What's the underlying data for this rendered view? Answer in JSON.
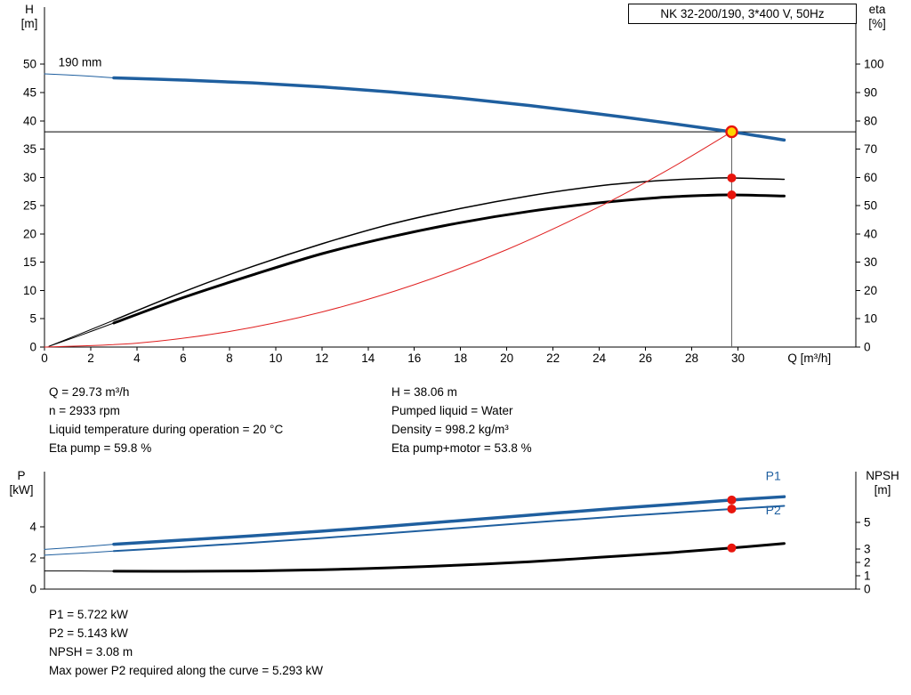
{
  "title_box": {
    "text": "NK 32-200/190, 3*400 V, 50Hz"
  },
  "axes_labels": {
    "top_left": [
      "H",
      "[m]"
    ],
    "top_right": [
      "eta",
      "[%]"
    ],
    "bottom_left": [
      "P",
      "[kW]"
    ],
    "bottom_right": [
      "NPSH",
      "[m]"
    ]
  },
  "info_top": {
    "left": [
      "Q = 29.73 m³/h",
      "n = 2933 rpm",
      "Liquid temperature during operation = 20 °C",
      "Eta pump = 59.8 %"
    ],
    "right": [
      "H = 38.06 m",
      "Pumped liquid = Water",
      "Density = 998.2 kg/m³",
      "Eta pump+motor = 53.8 %"
    ]
  },
  "info_bottom": [
    "P1 = 5.722 kW",
    "P2 = 5.143 kW",
    "NPSH = 3.08 m",
    "Max power P2 required along the curve = 5.293 kW"
  ],
  "colors": {
    "curve_blue": "#1f5f9f",
    "curve_black": "#000000",
    "curve_red": "#e02020",
    "dot_red": "#e8150d",
    "duty_fill": "#ffd500",
    "ref_gray": "#606060"
  },
  "chart_data": [
    {
      "type": "line",
      "name": "hq-eta-chart",
      "title": "NK 32-200/190, 3*400 V, 50Hz",
      "xlabel": "Q [m³/h]",
      "xlabel_at": 32.15,
      "x_range": [
        0,
        35.1
      ],
      "x_ticks": [
        0,
        2,
        4,
        6,
        8,
        10,
        12,
        14,
        16,
        18,
        20,
        22,
        24,
        26,
        28,
        30
      ],
      "y_left": {
        "label": "H [m]",
        "range": [
          0,
          60.1
        ],
        "ticks": [
          0,
          5,
          10,
          15,
          20,
          25,
          30,
          35,
          40,
          45,
          50
        ]
      },
      "y_right": {
        "label": "eta [%]",
        "range": [
          0,
          120.2
        ],
        "ticks": [
          0,
          10,
          20,
          30,
          40,
          50,
          60,
          70,
          80,
          90,
          100
        ]
      },
      "series": [
        {
          "name": "head-curve-leadin",
          "axis": "left",
          "color": "#1f5f9f",
          "width": 1,
          "points": [
            [
              0,
              48.3
            ],
            [
              1.5,
              48.0
            ],
            [
              3,
              47.6
            ]
          ]
        },
        {
          "name": "head-curve-190mm",
          "axis": "left",
          "color": "#1f5f9f",
          "width": 3.5,
          "points": [
            [
              3,
              47.6
            ],
            [
              6,
              47.2
            ],
            [
              9,
              46.7
            ],
            [
              12,
              46.0
            ],
            [
              15,
              45.1
            ],
            [
              18,
              44.0
            ],
            [
              21,
              42.7
            ],
            [
              24,
              41.2
            ],
            [
              27,
              39.6
            ],
            [
              29.73,
              38.06
            ],
            [
              32,
              36.6
            ]
          ]
        },
        {
          "name": "eta-pump-leadin",
          "axis": "right",
          "color": "#000000",
          "width": 1,
          "points": [
            [
              0.2,
              0.3
            ],
            [
              1.5,
              4.5
            ],
            [
              3,
              9.5
            ]
          ]
        },
        {
          "name": "eta-pump-curve",
          "axis": "right",
          "color": "#000000",
          "width": 1.5,
          "points": [
            [
              3,
              9.5
            ],
            [
              6,
              19.5
            ],
            [
              9,
              28.5
            ],
            [
              12,
              36.5
            ],
            [
              15,
              43.5
            ],
            [
              18,
              49
            ],
            [
              21,
              53.5
            ],
            [
              24,
              57
            ],
            [
              26.5,
              58.8
            ],
            [
              28.5,
              59.6
            ],
            [
              29.73,
              59.8
            ],
            [
              32,
              59.3
            ]
          ]
        },
        {
          "name": "eta-pump-motor-leadin",
          "axis": "right",
          "color": "#000000",
          "width": 1,
          "points": [
            [
              0.2,
              0.3
            ],
            [
              1.5,
              4.0
            ],
            [
              3,
              8.5
            ]
          ]
        },
        {
          "name": "eta-pump-motor-curve",
          "axis": "right",
          "color": "#000000",
          "width": 3,
          "points": [
            [
              3,
              8.5
            ],
            [
              6,
              17.5
            ],
            [
              9,
              25.5
            ],
            [
              12,
              33
            ],
            [
              15,
              39
            ],
            [
              18,
              44
            ],
            [
              21,
              48
            ],
            [
              24,
              51
            ],
            [
              26.5,
              52.8
            ],
            [
              28.5,
              53.6
            ],
            [
              29.73,
              53.8
            ],
            [
              32,
              53.4
            ]
          ]
        },
        {
          "name": "system-curve",
          "axis": "left",
          "color": "#e02020",
          "width": 1,
          "points": [
            [
              0,
              0
            ],
            [
              4,
              0.69
            ],
            [
              8,
              2.76
            ],
            [
              12,
              6.2
            ],
            [
              16,
              11.03
            ],
            [
              20,
              17.23
            ],
            [
              24,
              24.81
            ],
            [
              27,
              31.4
            ],
            [
              29.73,
              38.06
            ]
          ]
        }
      ],
      "ref_lines": [
        {
          "dir": "h",
          "axis": "left",
          "y": 38.06,
          "x_from": 0,
          "x_to": 35.1,
          "color": "#000000",
          "width": 1
        },
        {
          "dir": "v",
          "axis": "left",
          "x": 29.73,
          "y_from": 0,
          "y_to": 38.06,
          "color": "#606060",
          "width": 1
        }
      ],
      "markers": [
        {
          "name": "duty-point-marker",
          "style": "duty",
          "x": 29.73,
          "y": 38.06,
          "axis": "left"
        },
        {
          "name": "eta-pump-value-marker",
          "style": "dot",
          "x": 29.73,
          "y": 59.8,
          "axis": "right"
        },
        {
          "name": "eta-pump-motor-value-marker",
          "style": "dot",
          "x": 29.73,
          "y": 53.8,
          "axis": "right"
        }
      ],
      "annotations": [
        {
          "text": "190 mm",
          "x": 0.6,
          "y": 49.6,
          "axis": "left",
          "anchor": "start",
          "color": "#000000",
          "size": 13.5
        }
      ]
    },
    {
      "type": "line",
      "name": "power-npsh-chart",
      "title": "",
      "xlabel": "",
      "x_range": [
        0,
        35.1
      ],
      "x_ticks": [],
      "y_left": {
        "label": "P [kW]",
        "range": [
          0,
          7.54
        ],
        "ticks": [
          0,
          2,
          4
        ]
      },
      "y_right": {
        "label": "NPSH [m]",
        "range": [
          0,
          8.8
        ],
        "ticks": [
          0,
          1,
          2,
          3,
          5
        ]
      },
      "series": [
        {
          "name": "p1-curve-leadin",
          "axis": "left",
          "color": "#1f5f9f",
          "width": 1,
          "points": [
            [
              0,
              2.55
            ],
            [
              1.5,
              2.7
            ],
            [
              3,
              2.88
            ]
          ]
        },
        {
          "name": "p1-curve",
          "axis": "left",
          "color": "#1f5f9f",
          "width": 3.5,
          "points": [
            [
              3,
              2.88
            ],
            [
              6,
              3.15
            ],
            [
              9,
              3.42
            ],
            [
              12,
              3.72
            ],
            [
              15,
              4.05
            ],
            [
              18,
              4.4
            ],
            [
              21,
              4.75
            ],
            [
              24,
              5.1
            ],
            [
              27,
              5.42
            ],
            [
              29.73,
              5.722
            ],
            [
              32,
              5.93
            ]
          ]
        },
        {
          "name": "p2-curve-leadin",
          "axis": "left",
          "color": "#1f5f9f",
          "width": 1,
          "points": [
            [
              0,
              2.18
            ],
            [
              1.5,
              2.3
            ],
            [
              3,
              2.44
            ]
          ]
        },
        {
          "name": "p2-curve",
          "axis": "left",
          "color": "#1f5f9f",
          "width": 2,
          "points": [
            [
              3,
              2.44
            ],
            [
              6,
              2.7
            ],
            [
              9,
              2.98
            ],
            [
              12,
              3.28
            ],
            [
              15,
              3.6
            ],
            [
              18,
              3.93
            ],
            [
              21,
              4.26
            ],
            [
              24,
              4.58
            ],
            [
              27,
              4.88
            ],
            [
              29.73,
              5.143
            ],
            [
              32,
              5.34
            ]
          ]
        },
        {
          "name": "npsh-curve-leadin",
          "axis": "right",
          "color": "#000000",
          "width": 1,
          "points": [
            [
              0,
              1.36
            ],
            [
              1.5,
              1.36
            ],
            [
              3,
              1.34
            ]
          ]
        },
        {
          "name": "npsh-curve",
          "axis": "right",
          "color": "#000000",
          "width": 3,
          "points": [
            [
              3,
              1.34
            ],
            [
              6,
              1.33
            ],
            [
              9,
              1.36
            ],
            [
              12,
              1.45
            ],
            [
              15,
              1.6
            ],
            [
              18,
              1.8
            ],
            [
              21,
              2.05
            ],
            [
              24,
              2.38
            ],
            [
              27,
              2.72
            ],
            [
              29.73,
              3.08
            ],
            [
              32,
              3.42
            ]
          ]
        }
      ],
      "ref_lines": [],
      "markers": [
        {
          "name": "p1-value-marker",
          "style": "dot",
          "x": 29.73,
          "y": 5.722,
          "axis": "left"
        },
        {
          "name": "p2-value-marker",
          "style": "dot",
          "x": 29.73,
          "y": 5.143,
          "axis": "left"
        },
        {
          "name": "npsh-value-marker",
          "style": "dot",
          "x": 29.73,
          "y": 3.08,
          "axis": "right"
        }
      ],
      "annotations": [
        {
          "text": "P1",
          "x": 31.2,
          "y": 7.0,
          "axis": "left",
          "anchor": "start",
          "color": "#1f5f9f",
          "size": 14
        },
        {
          "text": "P2",
          "x": 31.2,
          "y": 4.8,
          "axis": "left",
          "anchor": "start",
          "color": "#1f5f9f",
          "size": 14
        }
      ]
    }
  ]
}
